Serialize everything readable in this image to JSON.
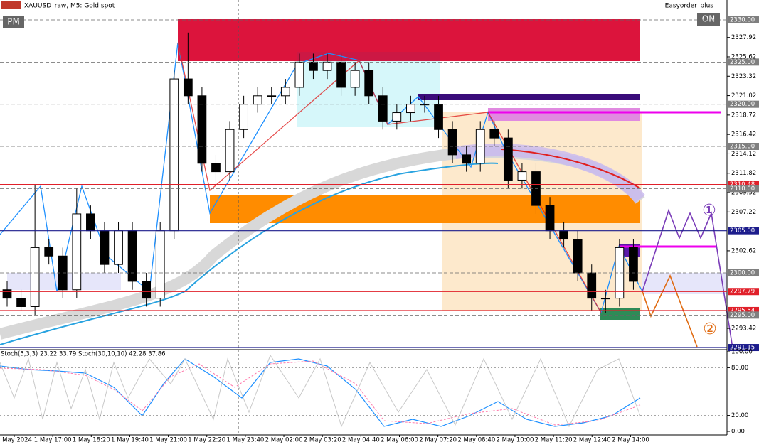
{
  "header": {
    "symbol": "XAUUSD_raw, M5:  Gold spot",
    "expert": "Easyorder_plus",
    "left_button": "PM",
    "right_button": "ON"
  },
  "markers": {
    "one": "①",
    "two": "②"
  },
  "chart": {
    "ylim": [
      2290.9,
      2332.36
    ],
    "up_color": "#ffffff",
    "down_color": "#000000",
    "price_ticks": [
      {
        "value": 2327.92,
        "label": "2327.92"
      },
      {
        "value": 2325.62,
        "label": "2325.62"
      },
      {
        "value": 2323.32,
        "label": "2323.32"
      },
      {
        "value": 2321.02,
        "label": "2321.02"
      },
      {
        "value": 2318.72,
        "label": "2318.72"
      },
      {
        "value": 2316.42,
        "label": "2316.42"
      },
      {
        "value": 2314.12,
        "label": "2314.12"
      },
      {
        "value": 2311.82,
        "label": "2311.82"
      },
      {
        "value": 2309.52,
        "label": "2309.52"
      },
      {
        "value": 2307.22,
        "label": "2307.22"
      },
      {
        "value": 2302.62,
        "label": "2302.62"
      },
      {
        "value": 2293.42,
        "label": "2293.42"
      }
    ],
    "levels": [
      {
        "value": 2330,
        "label": "2330.00",
        "color": "#7f7f7f"
      },
      {
        "value": 2325,
        "label": "2325.00",
        "color": "#7f7f7f"
      },
      {
        "value": 2320,
        "label": "2320.00",
        "color": "#7f7f7f"
      },
      {
        "value": 2315,
        "label": "2315.00",
        "color": "#7f7f7f"
      },
      {
        "value": 2310.48,
        "label": "2310.48",
        "color": "#e0202a"
      },
      {
        "value": 2310,
        "label": "2310.00",
        "color": "#7f7f7f"
      },
      {
        "value": 2305,
        "label": "2305.00",
        "color": "#1c1c8c"
      },
      {
        "value": 2300,
        "label": "2300.00",
        "color": "#7f7f7f"
      },
      {
        "value": 2297.79,
        "label": "2297.79",
        "color": "#e0202a"
      },
      {
        "value": 2295.54,
        "label": "2295.54",
        "color": "#e0202a"
      },
      {
        "value": 2295,
        "label": "2295.00",
        "color": "#7f7f7f"
      },
      {
        "value": 2291.15,
        "label": "2291.15",
        "color": "#1c1c8c"
      }
    ],
    "candles": {
      "open": [
        2298,
        2297,
        2296,
        2303,
        2302,
        2298,
        2307,
        2305,
        2301,
        2305,
        2299,
        2297,
        2305,
        2323,
        2321,
        2313,
        2312,
        2317,
        2320,
        2321,
        2321,
        2322,
        2325,
        2324,
        2325,
        2322,
        2324,
        2321,
        2318,
        2319,
        2320,
        2320,
        2317,
        2314,
        2313,
        2317,
        2316,
        2311,
        2312,
        2308,
        2305,
        2304,
        2300,
        2297,
        2297,
        2303
      ],
      "high": [
        2299,
        2298,
        2310.5,
        2304,
        2303,
        2310,
        2308,
        2306,
        2306,
        2306,
        2300,
        2306,
        2324,
        2328.5,
        2322,
        2314,
        2318,
        2321,
        2322,
        2322,
        2323,
        2326,
        2326,
        2326,
        2326,
        2325,
        2325,
        2322,
        2320,
        2321,
        2321,
        2321,
        2318,
        2315,
        2318,
        2318,
        2317,
        2313,
        2313,
        2309,
        2306,
        2305,
        2301,
        2298,
        2304,
        2304
      ],
      "low": [
        2296,
        2295.5,
        2295,
        2301,
        2297,
        2297,
        2304,
        2300,
        2300,
        2298,
        2296,
        2296,
        2304,
        2320,
        2312,
        2310,
        2311,
        2316,
        2319,
        2320,
        2320,
        2321,
        2323,
        2323,
        2321,
        2321,
        2320,
        2317,
        2317,
        2318,
        2319,
        2316,
        2313,
        2312,
        2312,
        2315,
        2310,
        2310,
        2307,
        2304,
        2303,
        2299,
        2295.5,
        2295.2,
        2296,
        2298
      ],
      "close": [
        2297,
        2296,
        2303,
        2302,
        2298,
        2307,
        2305,
        2301,
        2305,
        2299,
        2297,
        2305,
        2323,
        2321,
        2313,
        2312,
        2317,
        2320,
        2321,
        2321,
        2322,
        2325,
        2324,
        2325,
        2322,
        2324,
        2321,
        2318,
        2319,
        2320,
        2320,
        2317,
        2314,
        2313,
        2317,
        2316,
        2311,
        2312,
        2308,
        2305,
        2304,
        2300,
        2297,
        2297,
        2303,
        2299
      ]
    },
    "time_labels": [
      "1 May 2024",
      "1 May 17:00",
      "1 May 18:20",
      "1 May 19:40",
      "1 May 21:00",
      "1 May 22:20",
      "1 May 23:40",
      "2 May 02:00",
      "2 May 03:20",
      "2 May 04:40",
      "2 May 06:00",
      "2 May 07:20",
      "2 May 08:40",
      "2 May 10:00",
      "2 May 11:20",
      "2 May 12:40",
      "2 May 14:00"
    ]
  },
  "stochastic": {
    "label": "Stoch(5,3,3) 23.22 33.79 Stoch(30,10,10) 42.28 37.86",
    "ylim": [
      0,
      100
    ],
    "ticks": [
      {
        "value": 100,
        "label": "100.00"
      },
      {
        "value": 80,
        "label": "80.00"
      },
      {
        "value": 20,
        "label": "20.00"
      },
      {
        "value": 0,
        "label": "0.00"
      }
    ]
  }
}
